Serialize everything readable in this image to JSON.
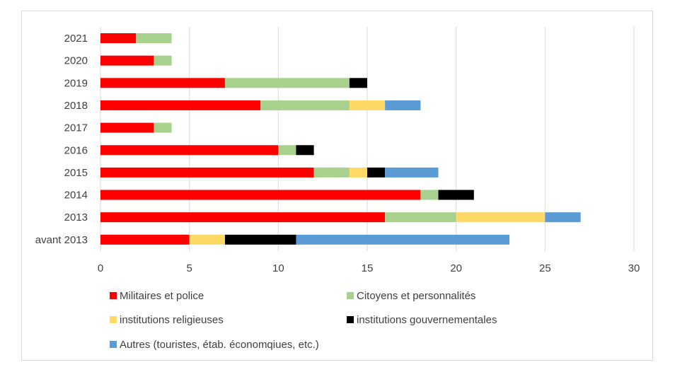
{
  "chart_data": {
    "type": "bar",
    "orientation": "horizontal",
    "stacked": true,
    "title": "",
    "xlabel": "",
    "ylabel": "",
    "xlim": [
      0,
      30
    ],
    "xticks": [
      0,
      5,
      10,
      15,
      20,
      25,
      30
    ],
    "grid": true,
    "legend_position": "bottom",
    "categories": [
      "2021",
      "2020",
      "2019",
      "2018",
      "2017",
      "2016",
      "2015",
      "2014",
      "2013",
      "avant 2013"
    ],
    "series": [
      {
        "name": "Militaires et police",
        "color": "#ff0000",
        "values": [
          2,
          3,
          7,
          9,
          3,
          10,
          12,
          18,
          16,
          5
        ]
      },
      {
        "name": "Citoyens et personnalités",
        "color": "#a9d18e",
        "values": [
          2,
          1,
          7,
          5,
          1,
          1,
          2,
          1,
          4,
          0
        ]
      },
      {
        "name": "institutions religieuses",
        "color": "#ffd966",
        "values": [
          0,
          0,
          0,
          2,
          0,
          0,
          1,
          0,
          5,
          2
        ]
      },
      {
        "name": "institutions gouvernementales",
        "color": "#000000",
        "values": [
          0,
          0,
          1,
          0,
          0,
          1,
          1,
          2,
          0,
          4
        ]
      },
      {
        "name": "Autres (touristes, étab. économqiues, etc.)",
        "color": "#5b9bd5",
        "values": [
          0,
          0,
          0,
          2,
          0,
          0,
          3,
          0,
          2,
          12
        ]
      }
    ]
  }
}
